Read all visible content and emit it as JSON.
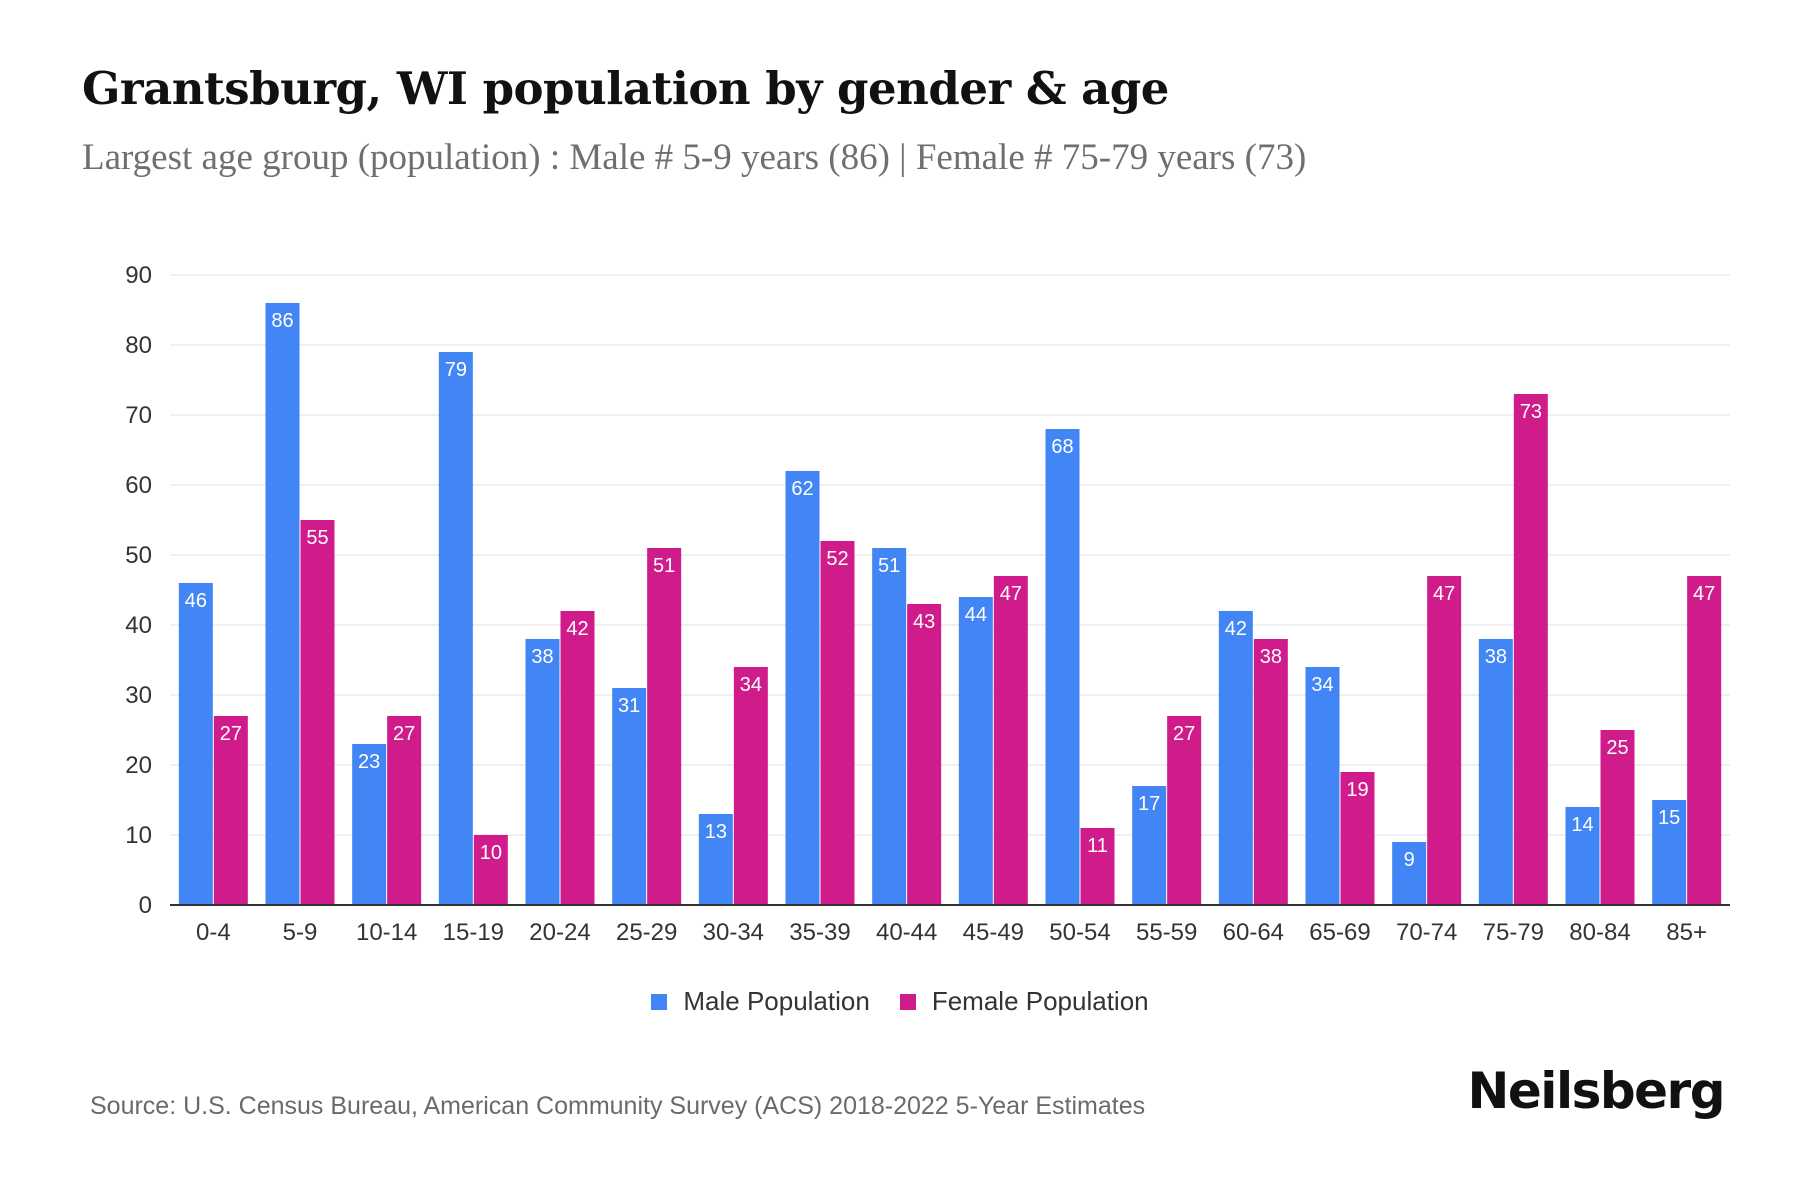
{
  "header": {
    "title": "Grantsburg, WI population by gender & age",
    "subtitle": "Largest age group (population) : Male # 5-9 years (86) | Female # 75-79 years (73)"
  },
  "footer": {
    "source": "Source: U.S. Census Bureau, American Community Survey (ACS) 2018-2022 5-Year Estimates",
    "brand": "Neilsberg"
  },
  "chart_data": {
    "type": "bar",
    "title": "Grantsburg, WI population by gender & age",
    "subtitle": "Largest age group (population) : Male # 5-9 years (86) | Female # 75-79 years (73)",
    "xlabel": "",
    "ylabel": "",
    "ylim": [
      0,
      90
    ],
    "yticks": [
      0,
      10,
      20,
      30,
      40,
      50,
      60,
      70,
      80,
      90
    ],
    "grid": true,
    "legend_position": "bottom-center",
    "categories": [
      "0-4",
      "5-9",
      "10-14",
      "15-19",
      "20-24",
      "25-29",
      "30-34",
      "35-39",
      "40-44",
      "45-49",
      "50-54",
      "55-59",
      "60-64",
      "65-69",
      "70-74",
      "75-79",
      "80-84",
      "85+"
    ],
    "series": [
      {
        "name": "Male Population",
        "color": "#4285f4",
        "values": [
          46,
          86,
          23,
          79,
          38,
          31,
          13,
          62,
          51,
          44,
          68,
          17,
          42,
          34,
          9,
          38,
          14,
          15
        ]
      },
      {
        "name": "Female Population",
        "color": "#d01c8b",
        "values": [
          27,
          55,
          27,
          10,
          42,
          51,
          34,
          52,
          43,
          47,
          11,
          27,
          38,
          19,
          47,
          73,
          25,
          47
        ]
      }
    ]
  }
}
